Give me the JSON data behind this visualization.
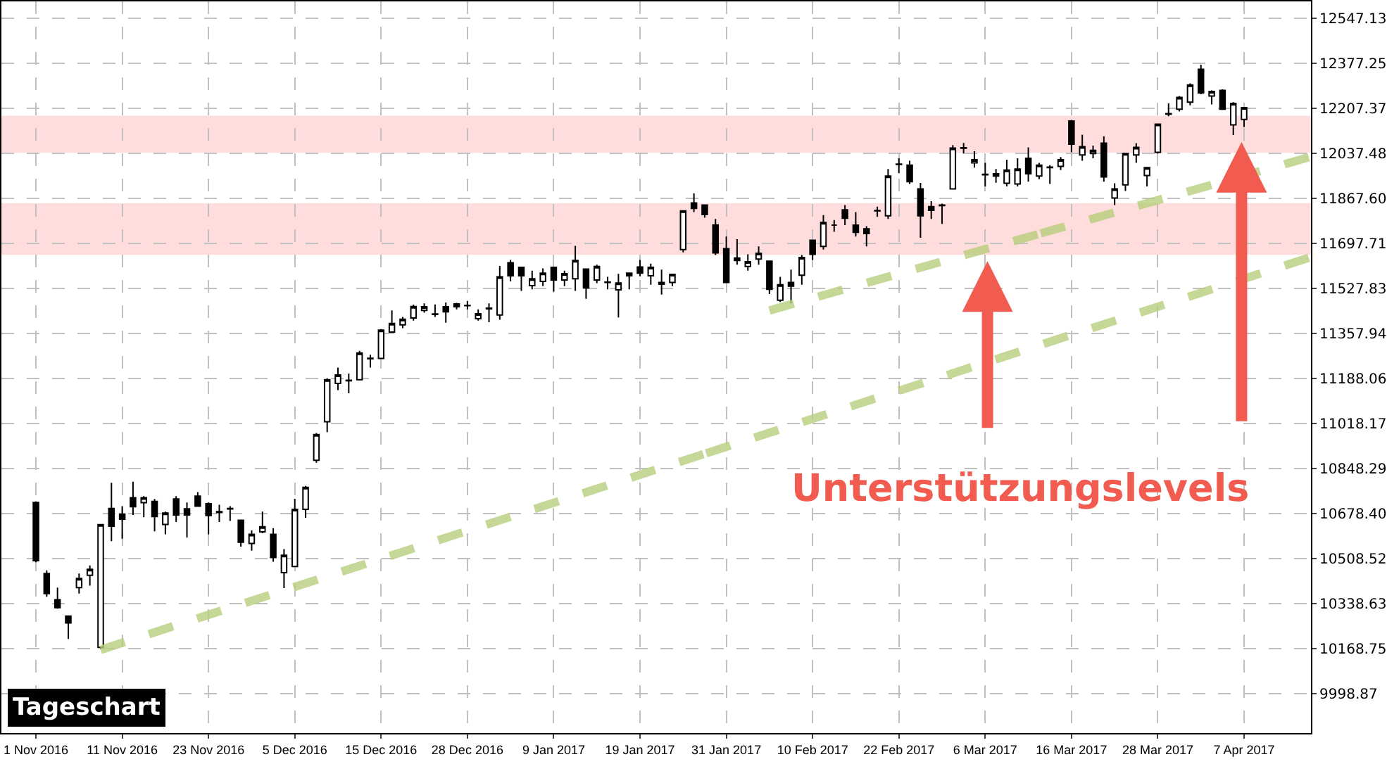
{
  "chart_data": {
    "type": "candlestick",
    "categories": [
      "1 Nov 2016",
      null,
      null,
      null,
      null,
      null,
      null,
      null,
      "11 Nov 2016",
      null,
      null,
      null,
      null,
      null,
      null,
      null,
      "23 Nov 2016",
      null,
      null,
      null,
      null,
      null,
      null,
      null,
      "5 Dec 2016",
      null,
      null,
      null,
      null,
      null,
      null,
      null,
      "15 Dec 2016",
      null,
      null,
      null,
      null,
      null,
      null,
      null,
      "28 Dec 2016",
      null,
      null,
      null,
      null,
      null,
      null,
      null,
      "9 Jan 2017",
      null,
      null,
      null,
      null,
      null,
      null,
      null,
      "19 Jan 2017",
      null,
      null,
      null,
      null,
      null,
      null,
      null,
      "31 Jan 2017",
      null,
      null,
      null,
      null,
      null,
      null,
      null,
      "10 Feb 2017",
      null,
      null,
      null,
      null,
      null,
      null,
      null,
      "22 Feb 2017",
      null,
      null,
      null,
      null,
      null,
      null,
      null,
      "6 Mar 2017",
      null,
      null,
      null,
      null,
      null,
      null,
      null,
      "16 Mar 2017",
      null,
      null,
      null,
      null,
      null,
      null,
      null,
      "28 Mar 2017",
      null,
      null,
      null,
      null,
      null,
      null,
      null,
      "7 Apr 2017",
      null,
      null,
      null,
      null,
      null,
      null
    ],
    "ohlc": [
      [
        10721,
        10725,
        10495,
        10501
      ],
      [
        10453,
        10465,
        10365,
        10377
      ],
      [
        10354,
        10400,
        10320,
        10324
      ],
      [
        10292,
        10295,
        10206,
        10266
      ],
      [
        10400,
        10453,
        10377,
        10434
      ],
      [
        10446,
        10483,
        10407,
        10469
      ],
      [
        10174,
        10640,
        10168,
        10637
      ],
      [
        10698,
        10795,
        10575,
        10631
      ],
      [
        10677,
        10707,
        10584,
        10658
      ],
      [
        10739,
        10799,
        10674,
        10705
      ],
      [
        10720,
        10745,
        10665,
        10739
      ],
      [
        10725,
        10734,
        10612,
        10668
      ],
      [
        10638,
        10686,
        10601,
        10681
      ],
      [
        10734,
        10745,
        10647,
        10674
      ],
      [
        10697,
        10721,
        10589,
        10674
      ],
      [
        10745,
        10760,
        10707,
        10707
      ],
      [
        10716,
        10721,
        10601,
        10672
      ],
      [
        10686,
        10712,
        10647,
        10683
      ],
      [
        10698,
        10707,
        10651,
        10696
      ],
      [
        10654,
        10656,
        10554,
        10571
      ],
      [
        10566,
        10615,
        10539,
        10601
      ],
      [
        10610,
        10686,
        10605,
        10629
      ],
      [
        10601,
        10624,
        10497,
        10513
      ],
      [
        10456,
        10545,
        10398,
        10522
      ],
      [
        10479,
        10735,
        10479,
        10695
      ],
      [
        10695,
        10783,
        10663,
        10778
      ],
      [
        10880,
        10983,
        10871,
        10977
      ],
      [
        11025,
        11189,
        10986,
        11184
      ],
      [
        11170,
        11230,
        11145,
        11202
      ],
      [
        11180,
        11207,
        11133,
        11182
      ],
      [
        11184,
        11293,
        11184,
        11285
      ],
      [
        11263,
        11278,
        11230,
        11265
      ],
      [
        11264,
        11375,
        11264,
        11371
      ],
      [
        11364,
        11445,
        11361,
        11396
      ],
      [
        11391,
        11421,
        11378,
        11412
      ],
      [
        11417,
        11467,
        11407,
        11460
      ],
      [
        11445,
        11472,
        11437,
        11459
      ],
      [
        11430,
        11468,
        11421,
        11432
      ],
      [
        11459,
        11475,
        11399,
        11440
      ],
      [
        11459,
        11474,
        11449,
        11470
      ],
      [
        11463,
        11481,
        11449,
        11464
      ],
      [
        11414,
        11449,
        11407,
        11433
      ],
      [
        11454,
        11472,
        11401,
        11451
      ],
      [
        11428,
        11613,
        11410,
        11572
      ],
      [
        11625,
        11636,
        11555,
        11576
      ],
      [
        11608,
        11608,
        11519,
        11576
      ],
      [
        11539,
        11595,
        11525,
        11565
      ],
      [
        11555,
        11604,
        11537,
        11586
      ],
      [
        11608,
        11608,
        11516,
        11560
      ],
      [
        11560,
        11595,
        11537,
        11584
      ],
      [
        11565,
        11689,
        11519,
        11634
      ],
      [
        11601,
        11601,
        11489,
        11530
      ],
      [
        11560,
        11618,
        11548,
        11611
      ],
      [
        11552,
        11572,
        11525,
        11551
      ],
      [
        11523,
        11583,
        11419,
        11549
      ],
      [
        11576,
        11586,
        11525,
        11586
      ],
      [
        11609,
        11636,
        11574,
        11586
      ],
      [
        11576,
        11622,
        11542,
        11608
      ],
      [
        11551,
        11599,
        11505,
        11544
      ],
      [
        11551,
        11581,
        11537,
        11581
      ],
      [
        11675,
        11821,
        11664,
        11821
      ],
      [
        11851,
        11887,
        11816,
        11830
      ],
      [
        11843,
        11843,
        11795,
        11807
      ],
      [
        11768,
        11790,
        11654,
        11662
      ],
      [
        11678,
        11724,
        11551,
        11551
      ],
      [
        11643,
        11714,
        11618,
        11634
      ],
      [
        11611,
        11657,
        11595,
        11629
      ],
      [
        11639,
        11687,
        11618,
        11661
      ],
      [
        11631,
        11631,
        11507,
        11525
      ],
      [
        11484,
        11572,
        11477,
        11542
      ],
      [
        11551,
        11599,
        11472,
        11537
      ],
      [
        11578,
        11654,
        11542,
        11645
      ],
      [
        11710,
        11710,
        11636,
        11657
      ],
      [
        11687,
        11805,
        11675,
        11777
      ],
      [
        11767,
        11786,
        11742,
        11767
      ],
      [
        11825,
        11843,
        11767,
        11793
      ],
      [
        11767,
        11816,
        11724,
        11740
      ],
      [
        11753,
        11763,
        11687,
        11735
      ],
      [
        11821,
        11837,
        11798,
        11822
      ],
      [
        11802,
        11979,
        11790,
        11952
      ],
      [
        11996,
        12019,
        11963,
        11997
      ],
      [
        11993,
        12010,
        11922,
        11931
      ],
      [
        11904,
        11926,
        11719,
        11802
      ],
      [
        11837,
        11857,
        11790,
        11823
      ],
      [
        11843,
        11848,
        11772,
        11841
      ],
      [
        11904,
        12069,
        11904,
        12058
      ],
      [
        12057,
        12077,
        12037,
        12059
      ],
      [
        12002,
        12046,
        11984,
        12014
      ],
      [
        11957,
        12002,
        11913,
        11959
      ],
      [
        11961,
        11979,
        11927,
        11952
      ],
      [
        11925,
        12014,
        11913,
        11975
      ],
      [
        11922,
        12019,
        11913,
        11979
      ],
      [
        12019,
        12060,
        11931,
        11961
      ],
      [
        11952,
        12002,
        11940,
        11993
      ],
      [
        11984,
        11993,
        11922,
        11986
      ],
      [
        11989,
        12024,
        11975,
        12014
      ],
      [
        12160,
        12164,
        12042,
        12072
      ],
      [
        12032,
        12108,
        12010,
        12063
      ],
      [
        12037,
        12067,
        12019,
        12049
      ],
      [
        12076,
        12102,
        11931,
        11949
      ],
      [
        11869,
        11925,
        11843,
        11904
      ],
      [
        11919,
        12037,
        11896,
        12037
      ],
      [
        12032,
        12076,
        12002,
        12060
      ],
      [
        11954,
        11984,
        11913,
        11984
      ],
      [
        12042,
        12148,
        12037,
        12148
      ],
      [
        12186,
        12226,
        12178,
        12188
      ],
      [
        12204,
        12254,
        12196,
        12249
      ],
      [
        12231,
        12302,
        12219,
        12296
      ],
      [
        12355,
        12372,
        12261,
        12266
      ],
      [
        12254,
        12275,
        12222,
        12271
      ],
      [
        12275,
        12279,
        12204,
        12204
      ],
      [
        12145,
        12231,
        12107,
        12226
      ],
      [
        12166,
        12210,
        12137,
        12210
      ],
      null,
      null,
      null,
      null,
      null,
      null
    ],
    "series": [
      {
        "type": "line",
        "values": [
          null,
          null,
          null,
          null,
          null,
          null,
          10165,
          null,
          null,
          null,
          null,
          null,
          null,
          null,
          null,
          null,
          null,
          null,
          null,
          null,
          null,
          null,
          null,
          null,
          null,
          null,
          null,
          null,
          null,
          null,
          null,
          null,
          null,
          null,
          null,
          null,
          null,
          null,
          null,
          null,
          null,
          null,
          null,
          null,
          null,
          null,
          null,
          null,
          null,
          null,
          null,
          null,
          null,
          null,
          null,
          null,
          null,
          null,
          null,
          null,
          null,
          null,
          null,
          null,
          null,
          null,
          null,
          null,
          null,
          null,
          null,
          null,
          null,
          null,
          null,
          null,
          null,
          null,
          null,
          null,
          null,
          null,
          null,
          null,
          null,
          null,
          null,
          null,
          null,
          null,
          null,
          null,
          null,
          null,
          null,
          null,
          null,
          null,
          null,
          null,
          null,
          null,
          null,
          null,
          null,
          null,
          null,
          null,
          null,
          null,
          null,
          null,
          null,
          null,
          null,
          null,
          null,
          null,
          11644
        ],
        "color": "#b8cf7e",
        "line_style": "dashed"
      },
      {
        "type": "line",
        "values": [
          null,
          null,
          null,
          null,
          null,
          null,
          null,
          null,
          null,
          null,
          null,
          null,
          null,
          null,
          null,
          null,
          null,
          null,
          null,
          null,
          null,
          null,
          null,
          null,
          null,
          null,
          null,
          null,
          null,
          null,
          null,
          null,
          null,
          null,
          null,
          null,
          null,
          null,
          null,
          null,
          null,
          null,
          null,
          null,
          null,
          null,
          null,
          null,
          null,
          null,
          null,
          null,
          null,
          null,
          null,
          null,
          null,
          null,
          null,
          null,
          null,
          null,
          null,
          null,
          null,
          null,
          null,
          null,
          11445,
          null,
          null,
          null,
          null,
          null,
          null,
          null,
          null,
          null,
          null,
          null,
          null,
          null,
          null,
          null,
          null,
          null,
          null,
          null,
          null,
          null,
          null,
          null,
          null,
          null,
          null,
          null,
          null,
          null,
          null,
          null,
          null,
          null,
          null,
          null,
          null,
          null,
          null,
          null,
          null,
          null,
          null,
          null,
          null,
          null,
          null,
          null,
          null,
          null,
          12023
        ],
        "color": "#b8cf7e",
        "line_style": "dashed"
      }
    ],
    "bands": [
      {
        "axis": "y",
        "from": 12040,
        "to": 12180,
        "color": "#ffb3b3"
      },
      {
        "axis": "y",
        "from": 11655,
        "to": 11850,
        "color": "#ffb3b3"
      }
    ],
    "ylim": [
      9851,
      12611
    ],
    "yticks": [
      9998.87,
      10168.75,
      10338.63,
      10508.52,
      {
        "value": 10678.4,
        "label": "10678.40"
      },
      10848.29,
      11018.17,
      11188.06,
      11357.94,
      11527.83,
      11697.71,
      {
        "value": 11867.6,
        "label": "11867.60"
      },
      12037.48,
      12207.37,
      12377.25,
      12547.13
    ],
    "grid": true,
    "annotations": [
      "Tageschart",
      "Unterstützungslevels"
    ]
  }
}
